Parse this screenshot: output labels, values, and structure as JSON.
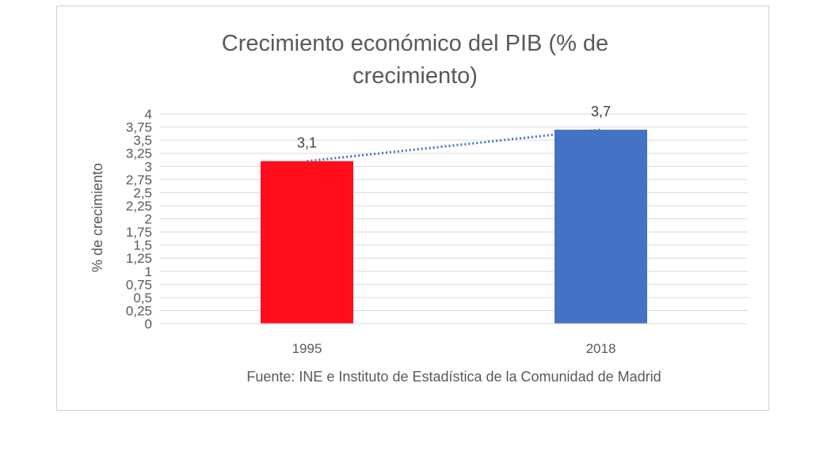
{
  "chart_data": {
    "type": "bar",
    "title_lines": [
      "Crecimiento económico del PIB (% de",
      "crecimiento)"
    ],
    "ylabel": "% de crecimiento",
    "xlabel": "",
    "categories": [
      "1995",
      "2018"
    ],
    "values": [
      3.1,
      3.7
    ],
    "data_labels": [
      "3,1",
      "3,7"
    ],
    "bar_colors": [
      "#ff0d1b",
      "#4472c4"
    ],
    "ylim": [
      0,
      4
    ],
    "y_ticks": [
      "0",
      "0,25",
      "0,5",
      "0,75",
      "1",
      "1,25",
      "1,5",
      "1,75",
      "2",
      "2,25",
      "2,5",
      "2,75",
      "3",
      "3,25",
      "3,5",
      "3,75",
      "4"
    ],
    "grid": true,
    "trendline": {
      "type": "linear",
      "style": "dotted",
      "color": "#4472c4"
    },
    "source": "Fuente: INE e Instituto de Estadística de la Comunidad de Madrid"
  }
}
